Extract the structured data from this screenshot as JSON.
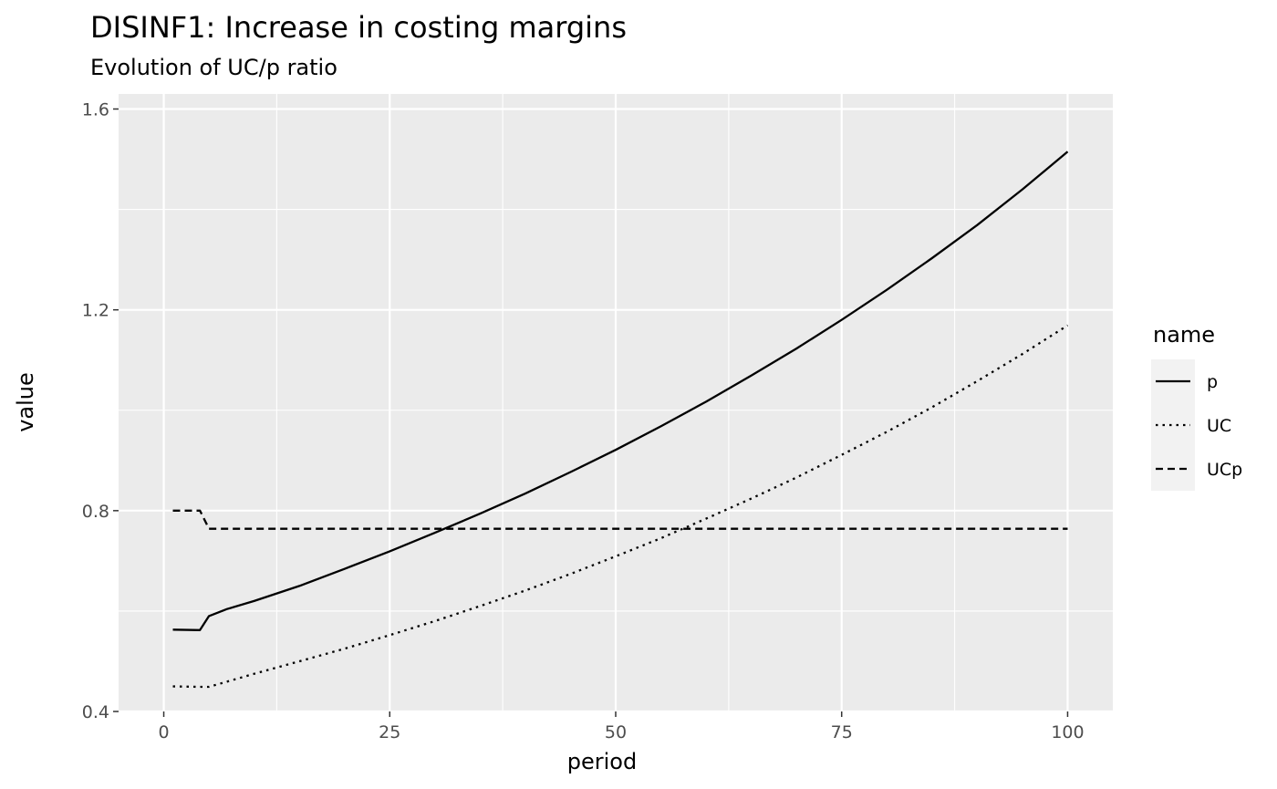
{
  "chart_data": {
    "type": "line",
    "title": "DISINF1: Increase in costing margins",
    "subtitle": "Evolution of UC/p ratio",
    "xlabel": "period",
    "ylabel": "value",
    "xlim": [
      -5,
      105
    ],
    "ylim": [
      0.4,
      1.63
    ],
    "x_ticks": [
      0,
      25,
      50,
      75,
      100
    ],
    "x_tick_labels": [
      "0",
      "25",
      "50",
      "75",
      "100"
    ],
    "y_ticks": [
      0.4,
      0.8,
      1.2,
      1.6
    ],
    "y_tick_labels": [
      "0.4",
      "0.8",
      "1.2",
      "1.6"
    ],
    "grid": true,
    "legend": {
      "title": "name",
      "position": "right"
    },
    "series": [
      {
        "name": "p",
        "linetype": "solid",
        "x": [
          1,
          4,
          5,
          7,
          10,
          15,
          20,
          25,
          30,
          35,
          40,
          45,
          50,
          55,
          60,
          65,
          70,
          75,
          80,
          85,
          90,
          95,
          100
        ],
        "y": [
          0.563,
          0.562,
          0.59,
          0.604,
          0.62,
          0.65,
          0.684,
          0.719,
          0.756,
          0.794,
          0.834,
          0.877,
          0.921,
          0.968,
          1.017,
          1.069,
          1.123,
          1.18,
          1.24,
          1.303,
          1.369,
          1.44,
          1.515
        ]
      },
      {
        "name": "UC",
        "linetype": "dotted",
        "x": [
          1,
          4,
          5,
          10,
          15,
          20,
          25,
          30,
          35,
          40,
          45,
          50,
          55,
          60,
          65,
          70,
          75,
          80,
          85,
          90,
          95,
          100
        ],
        "y": [
          0.45,
          0.449,
          0.449,
          0.475,
          0.5,
          0.525,
          0.552,
          0.58,
          0.61,
          0.641,
          0.674,
          0.709,
          0.745,
          0.784,
          0.824,
          0.866,
          0.911,
          0.957,
          1.006,
          1.058,
          1.112,
          1.169
        ]
      },
      {
        "name": "UCp",
        "linetype": "dashed",
        "x": [
          1,
          4,
          5,
          100
        ],
        "y": [
          0.8,
          0.8,
          0.764,
          0.764
        ]
      }
    ]
  }
}
